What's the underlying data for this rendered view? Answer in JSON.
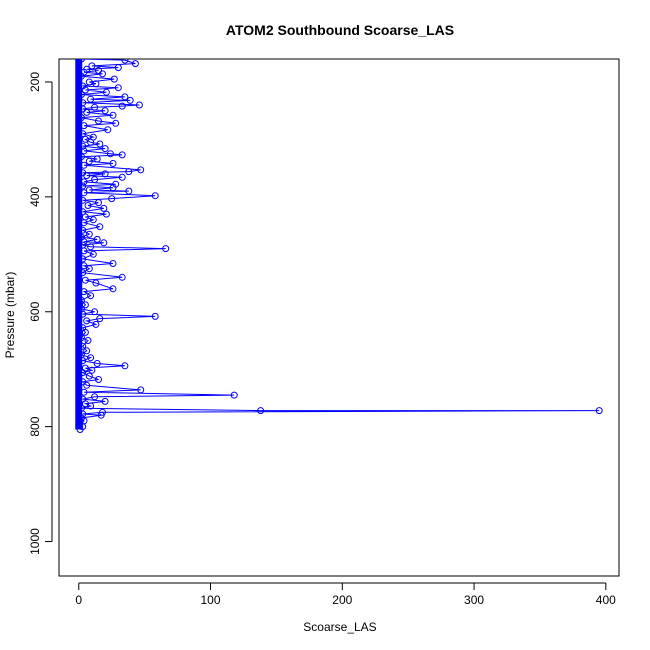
{
  "chart_data": {
    "type": "line",
    "title": "ATOM2 Southbound Scoarse_LAS",
    "xlabel": "Scoarse_LAS",
    "ylabel": "Pressure (mbar)",
    "xlim": [
      -15,
      410
    ],
    "ylim": [
      1060,
      160
    ],
    "y_reversed": true,
    "x_ticks": [
      "0",
      "100",
      "200",
      "300",
      "400"
    ],
    "x_tick_values": [
      0,
      100,
      200,
      300,
      400
    ],
    "y_ticks": [
      "200",
      "400",
      "600",
      "800",
      "1000"
    ],
    "y_tick_values": [
      200,
      400,
      600,
      800,
      1000
    ],
    "grid": false,
    "series": [
      {
        "color": "#0000ff",
        "marker": "open-circle",
        "points": [
          [
            2,
            160
          ],
          [
            35,
            162
          ],
          [
            43,
            168
          ],
          [
            10,
            172
          ],
          [
            30,
            175
          ],
          [
            6,
            178
          ],
          [
            15,
            180
          ],
          [
            4,
            183
          ],
          [
            18,
            186
          ],
          [
            2,
            190
          ],
          [
            27,
            195
          ],
          [
            8,
            200
          ],
          [
            13,
            203
          ],
          [
            3,
            207
          ],
          [
            30,
            210
          ],
          [
            5,
            214
          ],
          [
            21,
            218
          ],
          [
            2,
            222
          ],
          [
            35,
            226
          ],
          [
            9,
            230
          ],
          [
            39,
            232
          ],
          [
            3,
            236
          ],
          [
            46,
            240
          ],
          [
            33,
            242
          ],
          [
            12,
            244
          ],
          [
            3,
            247
          ],
          [
            20,
            250
          ],
          [
            6,
            253
          ],
          [
            26,
            258
          ],
          [
            2,
            262
          ],
          [
            15,
            268
          ],
          [
            28,
            272
          ],
          [
            4,
            276
          ],
          [
            22,
            283
          ],
          [
            3,
            290
          ],
          [
            11,
            296
          ],
          [
            5,
            300
          ],
          [
            9,
            305
          ],
          [
            16,
            308
          ],
          [
            3,
            312
          ],
          [
            20,
            316
          ],
          [
            4,
            320
          ],
          [
            24,
            325
          ],
          [
            33,
            327
          ],
          [
            2,
            330
          ],
          [
            14,
            334
          ],
          [
            8,
            338
          ],
          [
            26,
            342
          ],
          [
            4,
            345
          ],
          [
            47,
            353
          ],
          [
            38,
            356
          ],
          [
            3,
            358
          ],
          [
            20,
            360
          ],
          [
            6,
            363
          ],
          [
            33,
            366
          ],
          [
            12,
            370
          ],
          [
            4,
            374
          ],
          [
            28,
            378
          ],
          [
            3,
            381
          ],
          [
            26,
            384
          ],
          [
            8,
            388
          ],
          [
            38,
            390
          ],
          [
            4,
            393
          ],
          [
            58,
            398
          ],
          [
            25,
            403
          ],
          [
            3,
            406
          ],
          [
            15,
            410
          ],
          [
            7,
            415
          ],
          [
            19,
            420
          ],
          [
            3,
            426
          ],
          [
            21,
            430
          ],
          [
            5,
            435
          ],
          [
            11,
            440
          ],
          [
            4,
            445
          ],
          [
            16,
            452
          ],
          [
            3,
            458
          ],
          [
            8,
            465
          ],
          [
            2,
            470
          ],
          [
            14,
            474
          ],
          [
            4,
            478
          ],
          [
            19,
            480
          ],
          [
            3,
            484
          ],
          [
            9,
            487
          ],
          [
            66,
            490
          ],
          [
            4,
            494
          ],
          [
            11,
            500
          ],
          [
            3,
            508
          ],
          [
            26,
            516
          ],
          [
            4,
            520
          ],
          [
            8,
            525
          ],
          [
            3,
            532
          ],
          [
            33,
            540
          ],
          [
            5,
            545
          ],
          [
            13,
            550
          ],
          [
            26,
            560
          ],
          [
            4,
            565
          ],
          [
            9,
            572
          ],
          [
            2,
            580
          ],
          [
            5,
            588
          ],
          [
            2,
            595
          ],
          [
            12,
            600
          ],
          [
            3,
            604
          ],
          [
            58,
            608
          ],
          [
            16,
            612
          ],
          [
            6,
            616
          ],
          [
            13,
            622
          ],
          [
            3,
            628
          ],
          [
            5,
            636
          ],
          [
            2,
            645
          ],
          [
            7,
            650
          ],
          [
            3,
            660
          ],
          [
            6,
            668
          ],
          [
            2,
            675
          ],
          [
            9,
            680
          ],
          [
            3,
            685
          ],
          [
            14,
            690
          ],
          [
            35,
            694
          ],
          [
            5,
            698
          ],
          [
            10,
            702
          ],
          [
            3,
            706
          ],
          [
            8,
            712
          ],
          [
            15,
            718
          ],
          [
            3,
            722
          ],
          [
            6,
            728
          ],
          [
            47,
            736
          ],
          [
            4,
            740
          ],
          [
            118,
            745
          ],
          [
            12,
            748
          ],
          [
            3,
            752
          ],
          [
            20,
            756
          ],
          [
            5,
            760
          ],
          [
            9,
            764
          ],
          [
            2,
            768
          ],
          [
            138,
            772
          ],
          [
            395,
            772
          ],
          [
            18,
            775
          ],
          [
            3,
            778
          ],
          [
            17,
            780
          ],
          [
            2,
            785
          ],
          [
            4,
            790
          ],
          [
            1,
            795
          ],
          [
            3,
            800
          ],
          [
            1,
            805
          ]
        ]
      }
    ]
  }
}
